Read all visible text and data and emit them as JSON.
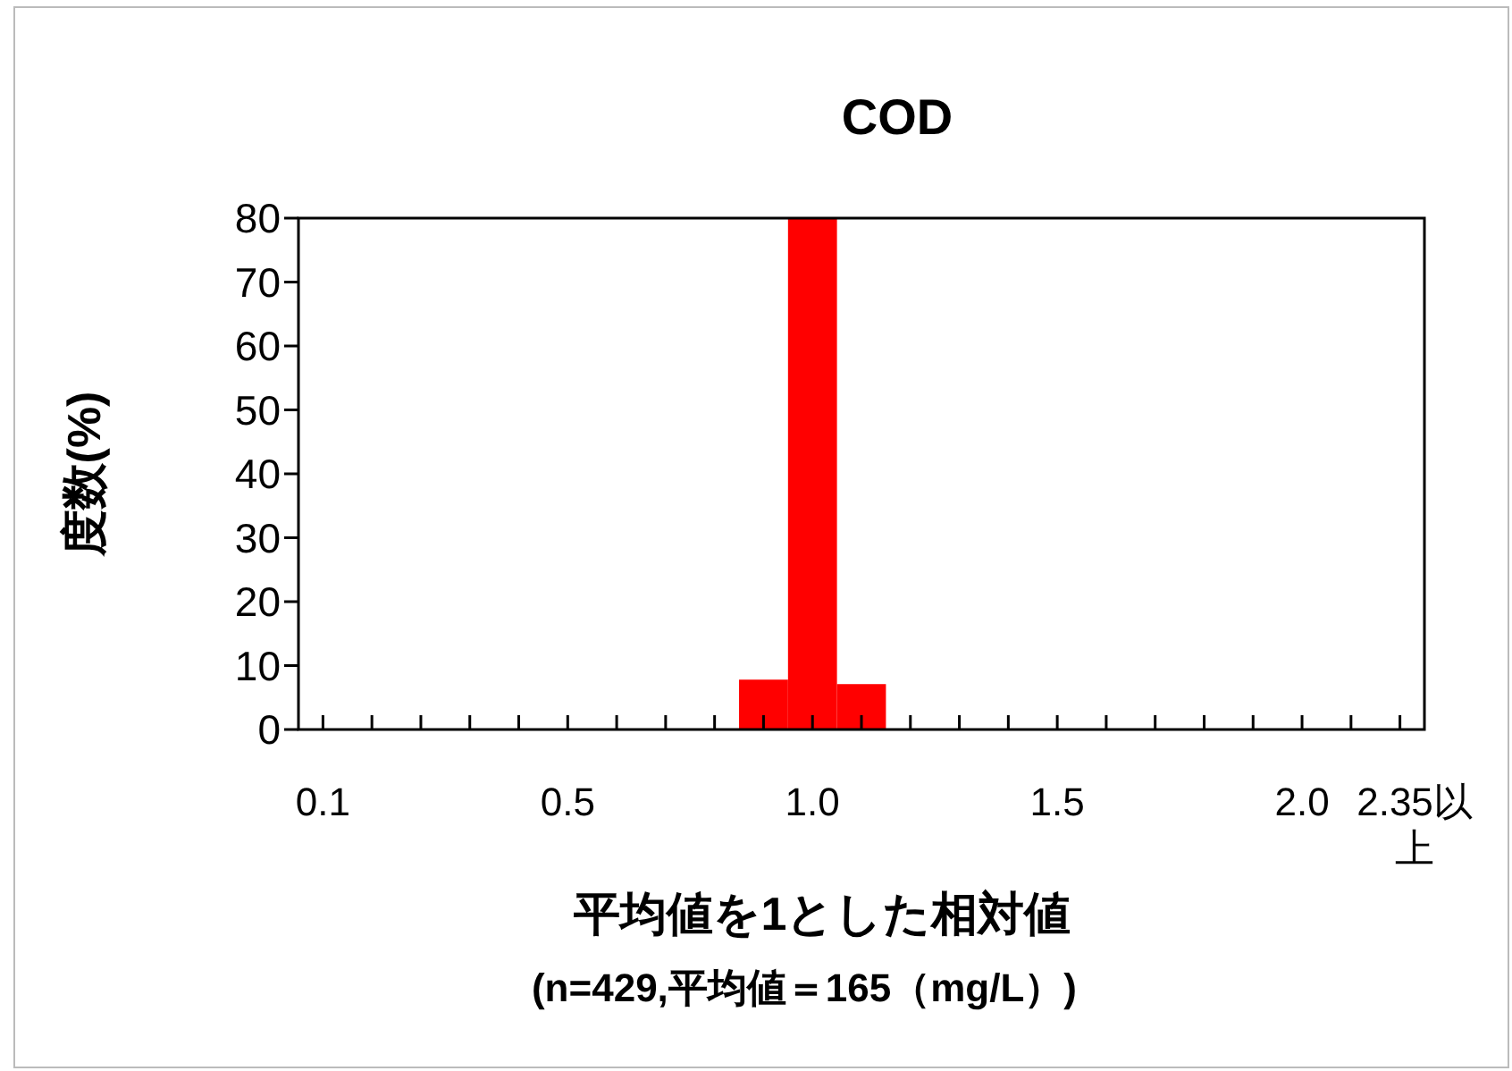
{
  "chart_data": {
    "type": "bar",
    "title": "COD",
    "ylabel": "度数(%)",
    "xlabel": "平均値を1とした相対値\n(n=429,平均値＝165（mg/L）)",
    "categories": [
      "0.1",
      null,
      null,
      null,
      null,
      "0.5",
      null,
      null,
      null,
      null,
      "1.0",
      null,
      null,
      null,
      null,
      "1.5",
      null,
      null,
      null,
      null,
      "2.0",
      null,
      "2.35以上"
    ],
    "values": [
      0,
      0,
      0,
      0,
      0,
      0,
      0,
      0,
      0,
      7.8,
      80,
      7.1,
      0,
      0,
      0,
      0,
      0,
      0,
      0,
      0,
      0,
      0,
      0
    ],
    "color": "#ff0000",
    "ylim": [
      0,
      80
    ],
    "yticks": [
      0,
      10,
      20,
      30,
      40,
      50,
      60,
      70,
      80
    ],
    "grid": false
  }
}
